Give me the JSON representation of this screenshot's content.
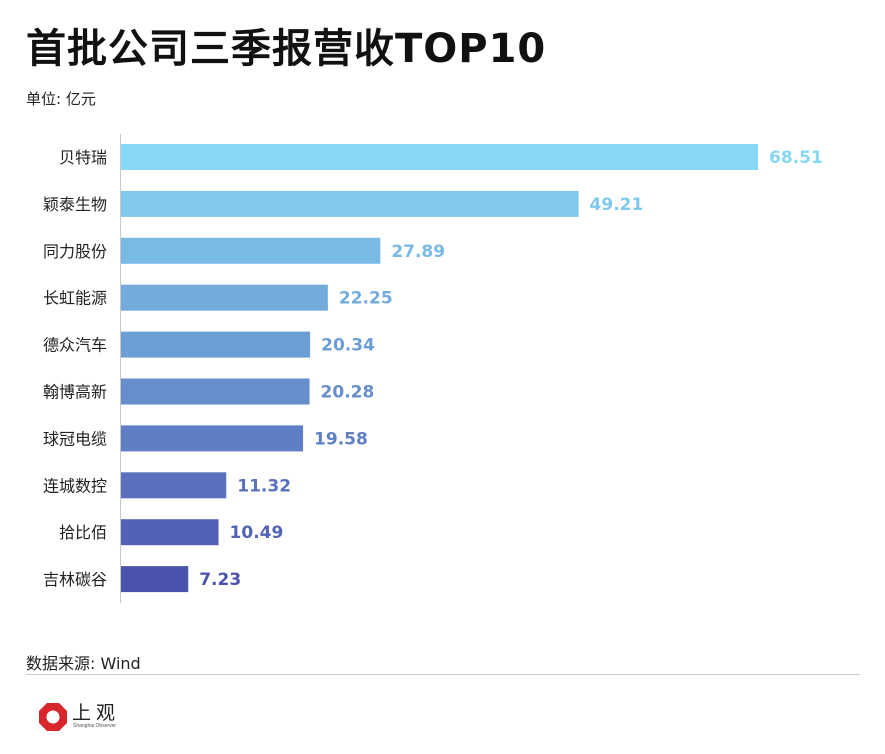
{
  "title": "首批公司三季报营收TOP10",
  "unit_label": "单位: 亿元",
  "source": "数据来源: Wind",
  "brand": {
    "name": "上观",
    "subtitle": "Shanghai Observer",
    "color": "#d8262f"
  },
  "chart_data": {
    "type": "bar",
    "orientation": "horizontal",
    "title": "首批公司三季报营收TOP10",
    "unit": "亿元",
    "categories": [
      "贝特瑞",
      "颖泰生物",
      "同力股份",
      "长虹能源",
      "德众汽车",
      "翰博高新",
      "球冠电缆",
      "连城数控",
      "拾比佰",
      "吉林碳谷"
    ],
    "values": [
      68.51,
      49.21,
      27.89,
      22.25,
      20.34,
      20.28,
      19.58,
      11.32,
      10.49,
      7.23
    ],
    "value_labels": [
      "68.51",
      "49.21",
      "27.89",
      "22.25",
      "20.34",
      "20.28",
      "19.58",
      "11.32",
      "10.49",
      "7.23"
    ],
    "bar_colors": [
      "#86d8f4",
      "#80c9ec",
      "#79bae4",
      "#73acdc",
      "#6c9dd4",
      "#668ecc",
      "#5f7fc4",
      "#5971bc",
      "#5262b4",
      "#4b53ac"
    ],
    "label_colors": [
      "#86d8f4",
      "#80c9ec",
      "#79bae4",
      "#73acdc",
      "#6c9dd4",
      "#668ecc",
      "#5f7fc4",
      "#5971bc",
      "#5262b4",
      "#4b53ac"
    ],
    "xlim": [
      0,
      68.51
    ],
    "grid": false,
    "legend": "none"
  }
}
